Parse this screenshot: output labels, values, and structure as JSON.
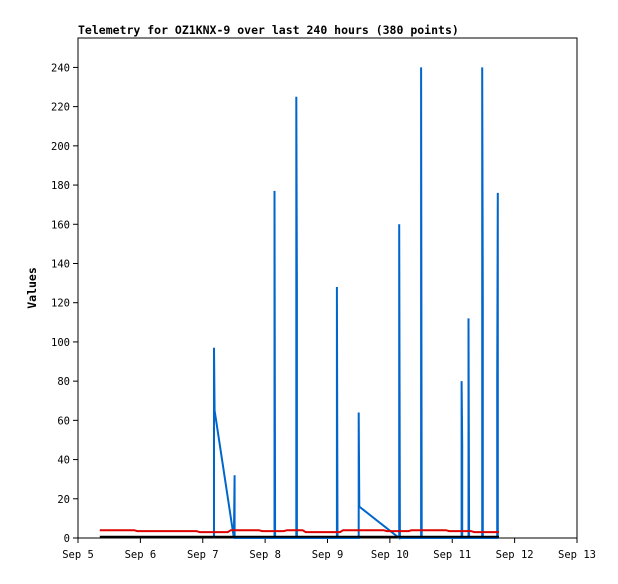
{
  "chart_data": {
    "type": "line",
    "title": "Telemetry for OZ1KNX-9 over last 240 hours (380 points)",
    "xlabel": "",
    "ylabel": "Values",
    "xlim": [
      0,
      8
    ],
    "ylim": [
      0,
      255
    ],
    "x_ticks": [
      "Sep 5",
      "Sep 6",
      "Sep 7",
      "Sep 8",
      "Sep 9",
      "Sep 10",
      "Sep 11",
      "Sep 12",
      "Sep 13"
    ],
    "y_ticks": [
      0,
      20,
      40,
      60,
      80,
      100,
      120,
      140,
      160,
      180,
      200,
      220,
      240
    ],
    "grid": false,
    "legend": "none",
    "series": [
      {
        "color": "#0066cc",
        "points": [
          [
            2.18,
            0
          ],
          [
            2.18,
            97
          ],
          [
            2.19,
            65
          ],
          [
            2.5,
            0
          ],
          [
            2.51,
            32
          ],
          [
            2.51,
            0
          ],
          [
            3.15,
            0
          ],
          [
            3.15,
            177
          ],
          [
            3.16,
            0
          ],
          [
            3.5,
            0
          ],
          [
            3.5,
            225
          ],
          [
            3.51,
            128
          ],
          [
            3.51,
            0
          ],
          [
            4.15,
            0
          ],
          [
            4.15,
            128
          ],
          [
            4.16,
            0
          ],
          [
            4.5,
            0
          ],
          [
            4.5,
            64
          ],
          [
            4.51,
            16
          ],
          [
            5.15,
            0
          ],
          [
            5.15,
            160
          ],
          [
            5.16,
            0
          ],
          [
            5.5,
            0
          ],
          [
            5.5,
            240
          ],
          [
            5.51,
            0
          ],
          [
            6.15,
            0
          ],
          [
            6.15,
            80
          ],
          [
            6.16,
            48
          ],
          [
            6.16,
            0
          ],
          [
            6.26,
            0
          ],
          [
            6.26,
            112
          ],
          [
            6.27,
            0
          ],
          [
            6.48,
            0
          ],
          [
            6.48,
            240
          ],
          [
            6.49,
            120
          ],
          [
            6.49,
            0
          ],
          [
            6.72,
            0
          ],
          [
            6.72,
            80
          ],
          [
            6.73,
            176
          ],
          [
            6.73,
            0
          ]
        ]
      },
      {
        "color": "#dd0000",
        "points": [
          [
            0.35,
            4
          ],
          [
            0.9,
            4
          ],
          [
            0.95,
            3.5
          ],
          [
            1.9,
            3.5
          ],
          [
            1.95,
            3
          ],
          [
            2.4,
            3
          ],
          [
            2.45,
            4
          ],
          [
            2.9,
            4
          ],
          [
            2.95,
            3.5
          ],
          [
            3.3,
            3.5
          ],
          [
            3.35,
            4
          ],
          [
            3.6,
            4
          ],
          [
            3.65,
            3
          ],
          [
            4.2,
            3
          ],
          [
            4.25,
            4
          ],
          [
            4.9,
            4
          ],
          [
            4.95,
            3.5
          ],
          [
            5.3,
            3.5
          ],
          [
            5.35,
            4
          ],
          [
            5.9,
            4
          ],
          [
            5.95,
            3.5
          ],
          [
            6.3,
            3.5
          ],
          [
            6.35,
            3
          ],
          [
            6.75,
            3
          ]
        ]
      },
      {
        "color": "#000000",
        "points": [
          [
            0.35,
            0.6
          ],
          [
            6.75,
            0.6
          ]
        ]
      }
    ]
  }
}
